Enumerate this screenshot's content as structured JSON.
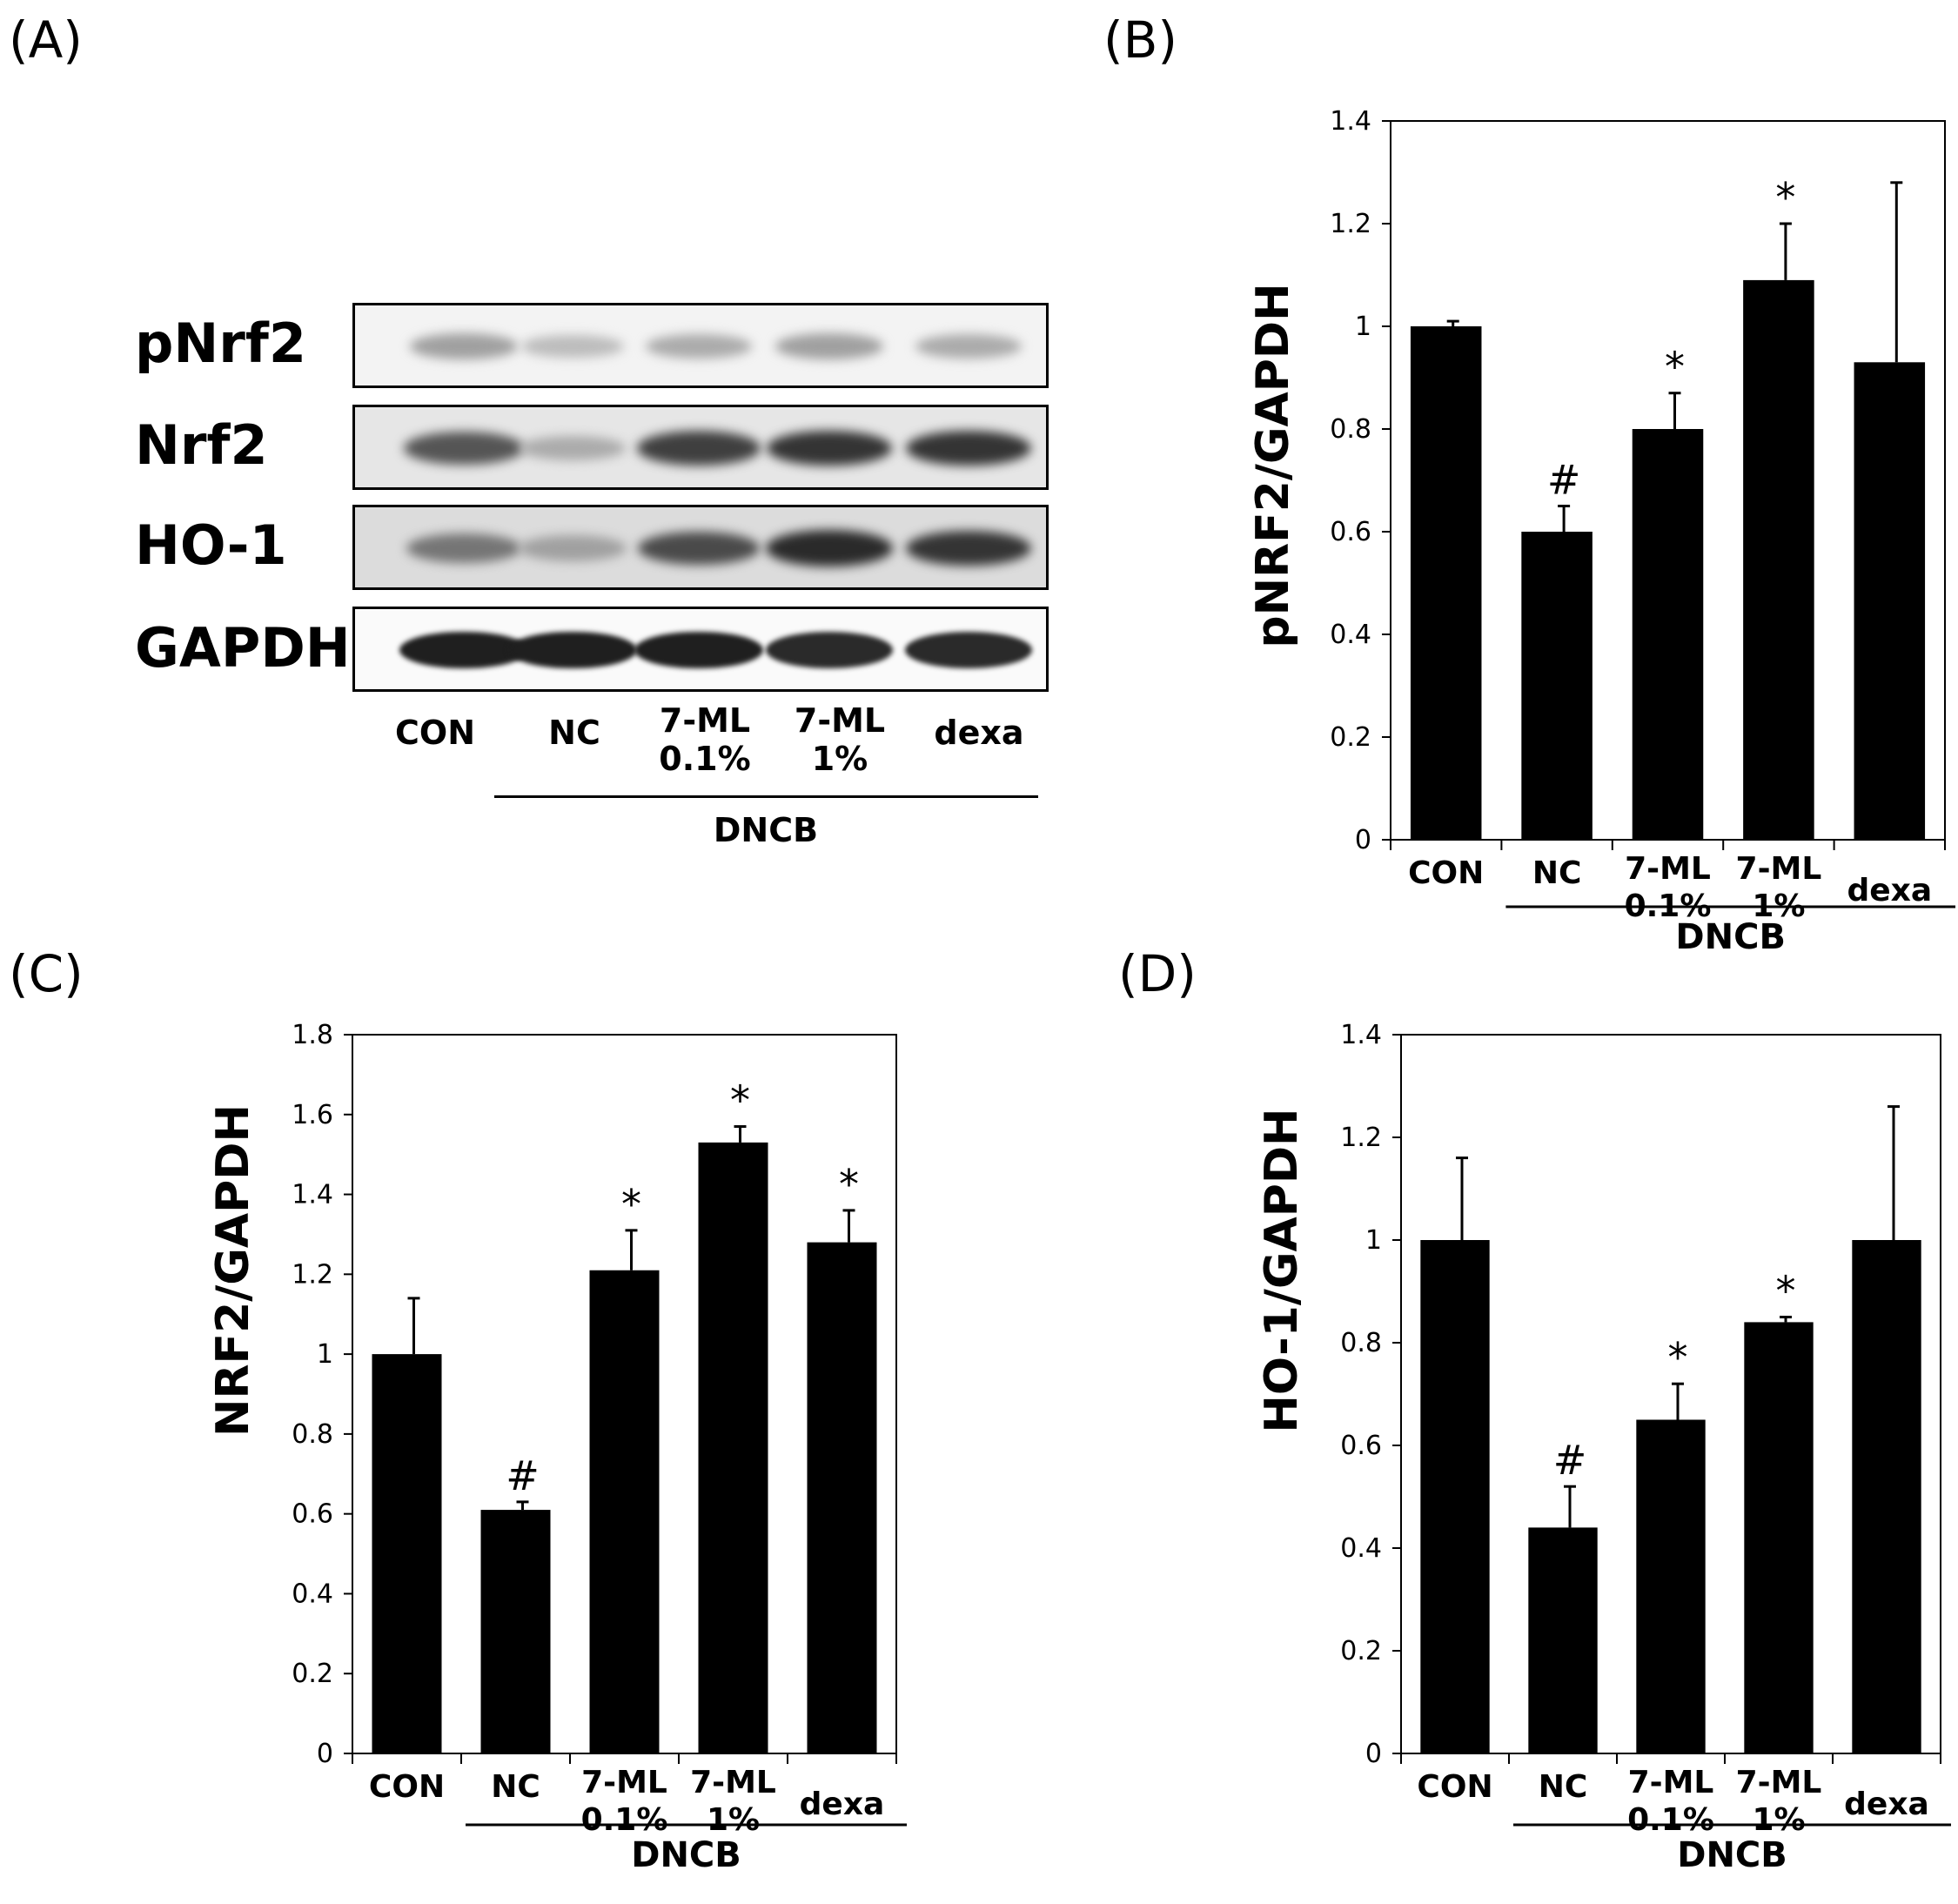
{
  "panels": {
    "A": {
      "letter": "(A)"
    },
    "B": {
      "letter": "(B)"
    },
    "C": {
      "letter": "(C)"
    },
    "D": {
      "letter": "(D)"
    }
  },
  "blot": {
    "rows": [
      "pNrf2",
      "Nrf2",
      "HO-1",
      "GAPDH"
    ],
    "lanes": [
      {
        "line1": "CON",
        "line2": ""
      },
      {
        "line1": "NC",
        "line2": ""
      },
      {
        "line1": "7-ML",
        "line2": "0.1%"
      },
      {
        "line1": "7-ML",
        "line2": "1%"
      },
      {
        "line1": "dexa",
        "line2": ""
      }
    ],
    "group_label": "DNCB",
    "band_intensity": [
      [
        0.35,
        0.22,
        0.3,
        0.35,
        0.3
      ],
      [
        0.7,
        0.3,
        0.8,
        0.85,
        0.85
      ],
      [
        0.55,
        0.35,
        0.75,
        0.9,
        0.85
      ],
      [
        0.95,
        0.95,
        0.95,
        0.9,
        0.9
      ]
    ]
  },
  "chart_data": [
    {
      "panel": "B",
      "type": "bar",
      "ylabel": "pNRF2/GAPDH",
      "ylim": [
        0,
        1.4
      ],
      "yticks": [
        "0",
        "0.2",
        "0.4",
        "0.6",
        "0.8",
        "1",
        "1.2",
        "1.4"
      ],
      "categories": [
        [
          "CON",
          ""
        ],
        [
          "NC",
          ""
        ],
        [
          "7-ML",
          "0.1%"
        ],
        [
          "7-ML",
          "1%"
        ],
        [
          "dexa",
          ""
        ]
      ],
      "values": [
        1.0,
        0.6,
        0.8,
        1.09,
        0.93
      ],
      "errors": [
        0.01,
        0.05,
        0.07,
        0.11,
        0.35
      ],
      "marks": [
        "",
        "#",
        "*",
        "*",
        ""
      ],
      "group_label": "DNCB"
    },
    {
      "panel": "C",
      "type": "bar",
      "ylabel": "NRF2/GAPDH",
      "ylim": [
        0,
        1.8
      ],
      "yticks": [
        "0",
        "0.2",
        "0.4",
        "0.6",
        "0.8",
        "1",
        "1.2",
        "1.4",
        "1.6",
        "1.8"
      ],
      "categories": [
        [
          "CON",
          ""
        ],
        [
          "NC",
          ""
        ],
        [
          "7-ML",
          "0.1%"
        ],
        [
          "7-ML",
          "1%"
        ],
        [
          "dexa",
          ""
        ]
      ],
      "values": [
        1.0,
        0.61,
        1.21,
        1.53,
        1.28
      ],
      "errors": [
        0.14,
        0.02,
        0.1,
        0.04,
        0.08
      ],
      "marks": [
        "",
        "#",
        "*",
        "*",
        "*"
      ],
      "group_label": "DNCB"
    },
    {
      "panel": "D",
      "type": "bar",
      "ylabel": "HO-1/GAPDH",
      "ylim": [
        0,
        1.4
      ],
      "yticks": [
        "0",
        "0.2",
        "0.4",
        "0.6",
        "0.8",
        "1",
        "1.2",
        "1.4"
      ],
      "categories": [
        [
          "CON",
          ""
        ],
        [
          "NC",
          ""
        ],
        [
          "7-ML",
          "0.1%"
        ],
        [
          "7-ML",
          "1%"
        ],
        [
          "dexa",
          ""
        ]
      ],
      "values": [
        1.0,
        0.44,
        0.65,
        0.84,
        1.0
      ],
      "errors": [
        0.16,
        0.08,
        0.07,
        0.01,
        0.26
      ],
      "marks": [
        "",
        "#",
        "*",
        "*",
        ""
      ],
      "group_label": "DNCB"
    }
  ]
}
